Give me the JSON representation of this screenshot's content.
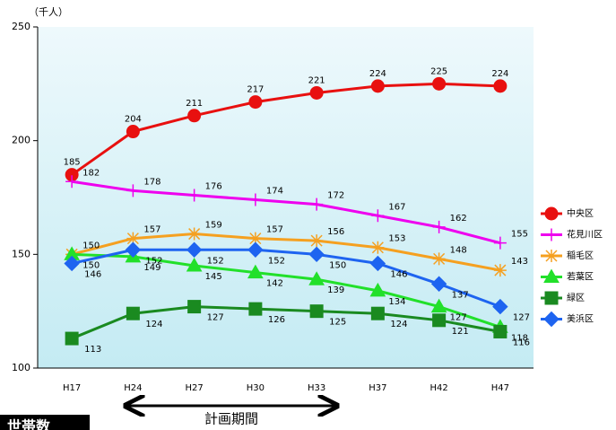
{
  "chart_data": {
    "type": "line",
    "y_unit": "（千人）",
    "categories": [
      "H17",
      "H24",
      "H27",
      "H30",
      "H33",
      "H37",
      "H42",
      "H47"
    ],
    "ylim": [
      100,
      250
    ],
    "yticks": [
      100,
      150,
      200,
      250
    ],
    "legend": "right",
    "annotation": "計画期間",
    "footer": "世帯数",
    "series": [
      {
        "name": "中央区",
        "color": "#e8100f",
        "marker": "circle",
        "values": [
          185,
          204,
          211,
          217,
          221,
          224,
          225,
          224
        ]
      },
      {
        "name": "花見川区",
        "color": "#ee00ee",
        "marker": "plus",
        "values": [
          182,
          178,
          176,
          174,
          172,
          167,
          162,
          155
        ]
      },
      {
        "name": "稲毛区",
        "color": "#f5a020",
        "marker": "star",
        "values": [
          150,
          157,
          159,
          157,
          156,
          153,
          148,
          143
        ]
      },
      {
        "name": "若葉区",
        "color": "#22e02a",
        "marker": "triangle",
        "values": [
          150,
          149,
          145,
          142,
          139,
          134,
          127,
          118
        ]
      },
      {
        "name": "緑区",
        "color": "#1a8a20",
        "marker": "square",
        "values": [
          113,
          124,
          127,
          126,
          125,
          124,
          121,
          116
        ]
      },
      {
        "name": "美浜区",
        "color": "#1e64f0",
        "marker": "diamond",
        "values": [
          146,
          152,
          152,
          152,
          150,
          146,
          137,
          127
        ]
      }
    ]
  }
}
